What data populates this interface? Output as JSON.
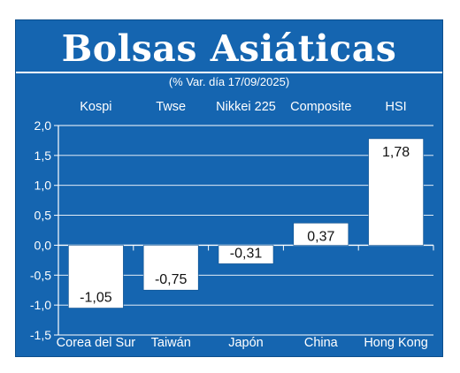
{
  "title": "Bolsas Asiáticas",
  "subtitle": "(% Var. día  17/09/2025)",
  "colors": {
    "panel": "#1565b0",
    "bar": "#ffffff",
    "grid": "#ffffff"
  },
  "chart_data": {
    "type": "bar",
    "title": "Bolsas Asiáticas",
    "subtitle": "(% Var. día  17/09/2025)",
    "categories": [
      "Corea del Sur",
      "Taiwán",
      "Japón",
      "China",
      "Hong Kong"
    ],
    "indices": [
      "Kospi",
      "Twse",
      "Nikkei 225",
      "Composite",
      "HSI"
    ],
    "values": [
      -1.05,
      -0.75,
      -0.31,
      0.37,
      1.78
    ],
    "value_labels": [
      "-1,05",
      "-0,75",
      "-0,31",
      "0,37",
      "1,78"
    ],
    "yticks": [
      "2,0",
      "1,5",
      "1,0",
      "0,5",
      "0,0",
      "-0,5",
      "-1,0",
      "-1,5"
    ],
    "ytick_values": [
      2.0,
      1.5,
      1.0,
      0.5,
      0.0,
      -0.5,
      -1.0,
      -1.5
    ],
    "ylim": [
      -1.5,
      2.0
    ],
    "grid": true,
    "xlabel": "",
    "ylabel": ""
  }
}
